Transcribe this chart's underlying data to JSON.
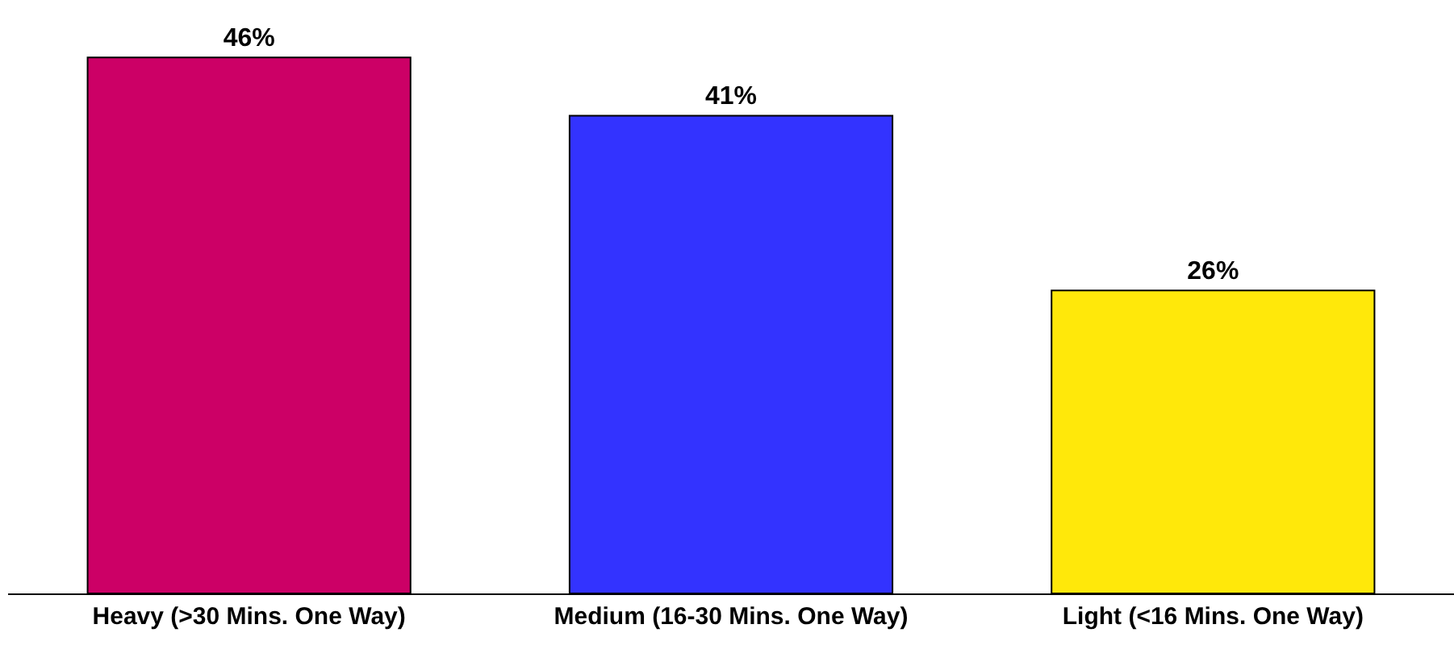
{
  "chart_data": {
    "type": "bar",
    "categories": [
      "Heavy (>30 Mins. One Way)",
      "Medium (16-30 Mins. One Way)",
      "Light (<16 Mins. One Way)"
    ],
    "values": [
      46,
      41,
      26
    ],
    "colors": [
      "#cc0066",
      "#3333ff",
      "#ffe80a"
    ],
    "value_labels": [
      "46%",
      "41%",
      "26%"
    ]
  }
}
